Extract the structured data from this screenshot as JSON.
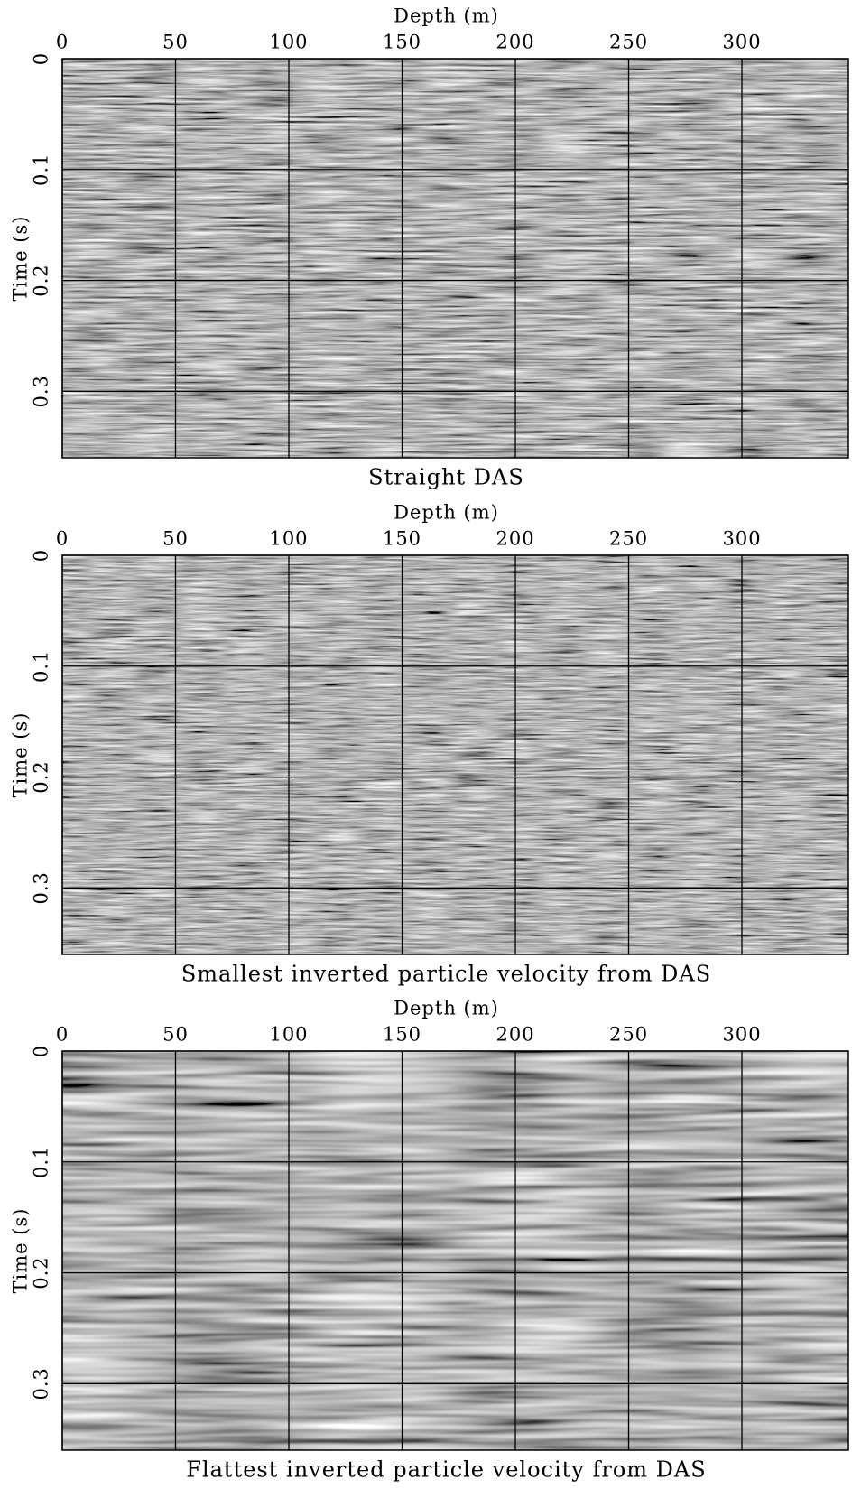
{
  "chart_data": [
    {
      "type": "seismic",
      "title": "Straight DAS",
      "xlabel": "Depth (m)",
      "ylabel": "Time (s)",
      "xlim": [
        0,
        347
      ],
      "ylim": [
        0,
        0.36
      ],
      "xticks": [
        0,
        50,
        100,
        150,
        200,
        250,
        300
      ],
      "yticks": [
        0,
        0.1,
        0.2,
        0.3
      ],
      "grid": true
    },
    {
      "type": "seismic",
      "title": "Smallest inverted particle velocity from DAS",
      "xlabel": "Depth (m)",
      "ylabel": "Time (s)",
      "xlim": [
        0,
        347
      ],
      "ylim": [
        0,
        0.36
      ],
      "xticks": [
        0,
        50,
        100,
        150,
        200,
        250,
        300
      ],
      "yticks": [
        0,
        0.1,
        0.2,
        0.3
      ],
      "grid": true
    },
    {
      "type": "seismic",
      "title": "Flattest inverted particle velocity from DAS",
      "xlabel": "Depth (m)",
      "ylabel": "Time (s)",
      "xlim": [
        0,
        347
      ],
      "ylim": [
        0,
        0.36
      ],
      "xticks": [
        0,
        50,
        100,
        150,
        200,
        250,
        300
      ],
      "yticks": [
        0,
        0.1,
        0.2,
        0.3
      ],
      "grid": true
    }
  ]
}
